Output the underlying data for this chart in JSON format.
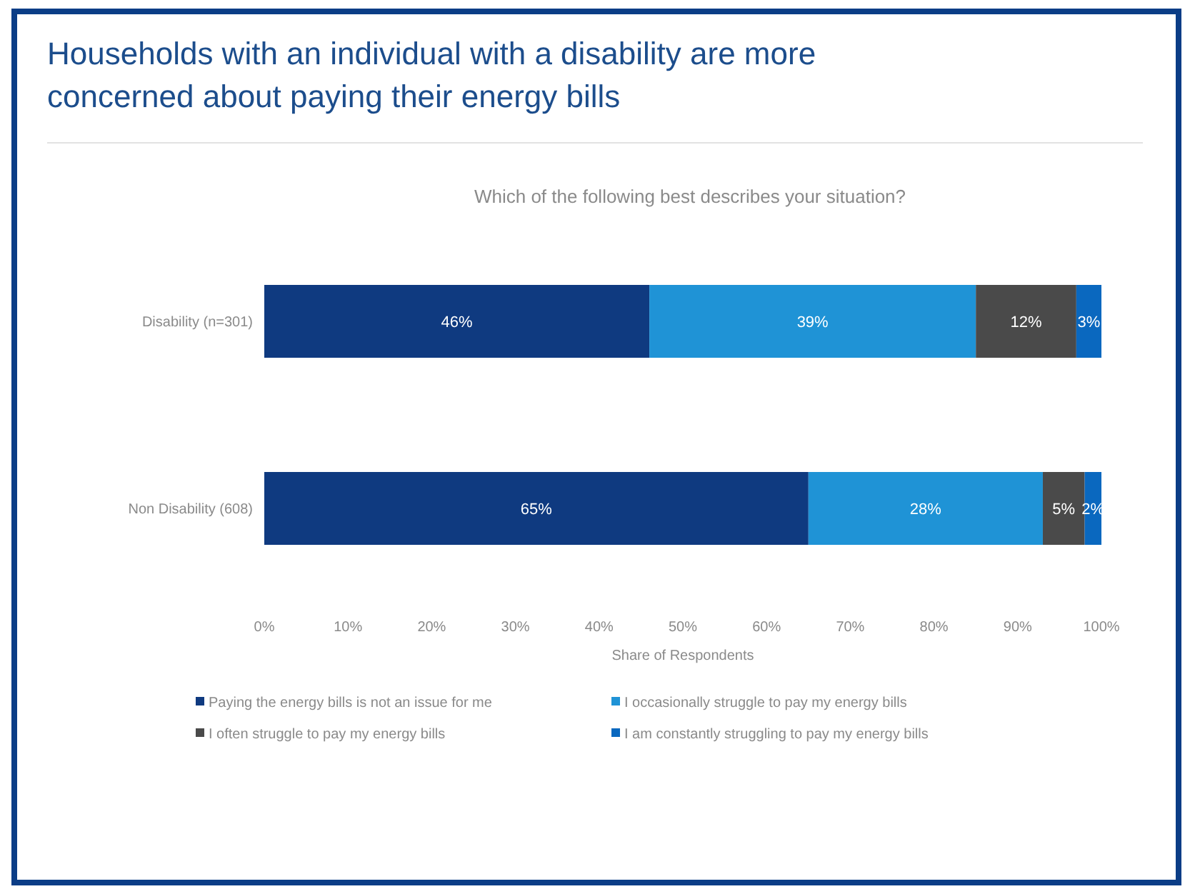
{
  "chart_data": {
    "type": "bar",
    "orientation": "horizontal",
    "stacked": true,
    "title": "Households with an individual with a disability are more concerned about paying their energy bills",
    "subtitle": "Which of the following best describes your situation?",
    "xlabel": "Share of Respondents",
    "categories": [
      "Disability (n=301)",
      "Non Disability (608)"
    ],
    "series": [
      {
        "name": "Paying the energy bills is not an issue for me",
        "color": "#0f3a80",
        "values": [
          46,
          65
        ],
        "value_labels": [
          "46%",
          "65%"
        ]
      },
      {
        "name": "I occasionally struggle to pay my energy bills",
        "color": "#1f93d6",
        "values": [
          39,
          28
        ],
        "value_labels": [
          "39%",
          "28%"
        ]
      },
      {
        "name": "I often struggle to pay my energy bills",
        "color": "#4a4a4a",
        "values": [
          12,
          5
        ],
        "value_labels": [
          "12%",
          "5%"
        ]
      },
      {
        "name": "I am constantly struggling to pay my energy bills",
        "color": "#0a68bf",
        "values": [
          3,
          2
        ],
        "value_labels": [
          "3%",
          "2%"
        ]
      }
    ],
    "xlim": [
      0,
      100
    ],
    "xticks": [
      {
        "value": 0,
        "label": "0%"
      },
      {
        "value": 10,
        "label": "10%"
      },
      {
        "value": 20,
        "label": "20%"
      },
      {
        "value": 30,
        "label": "30%"
      },
      {
        "value": 40,
        "label": "40%"
      },
      {
        "value": 50,
        "label": "50%"
      },
      {
        "value": 60,
        "label": "60%"
      },
      {
        "value": 70,
        "label": "70%"
      },
      {
        "value": 80,
        "label": "80%"
      },
      {
        "value": 90,
        "label": "90%"
      },
      {
        "value": 100,
        "label": "100%"
      }
    ],
    "legend": "bottom"
  }
}
